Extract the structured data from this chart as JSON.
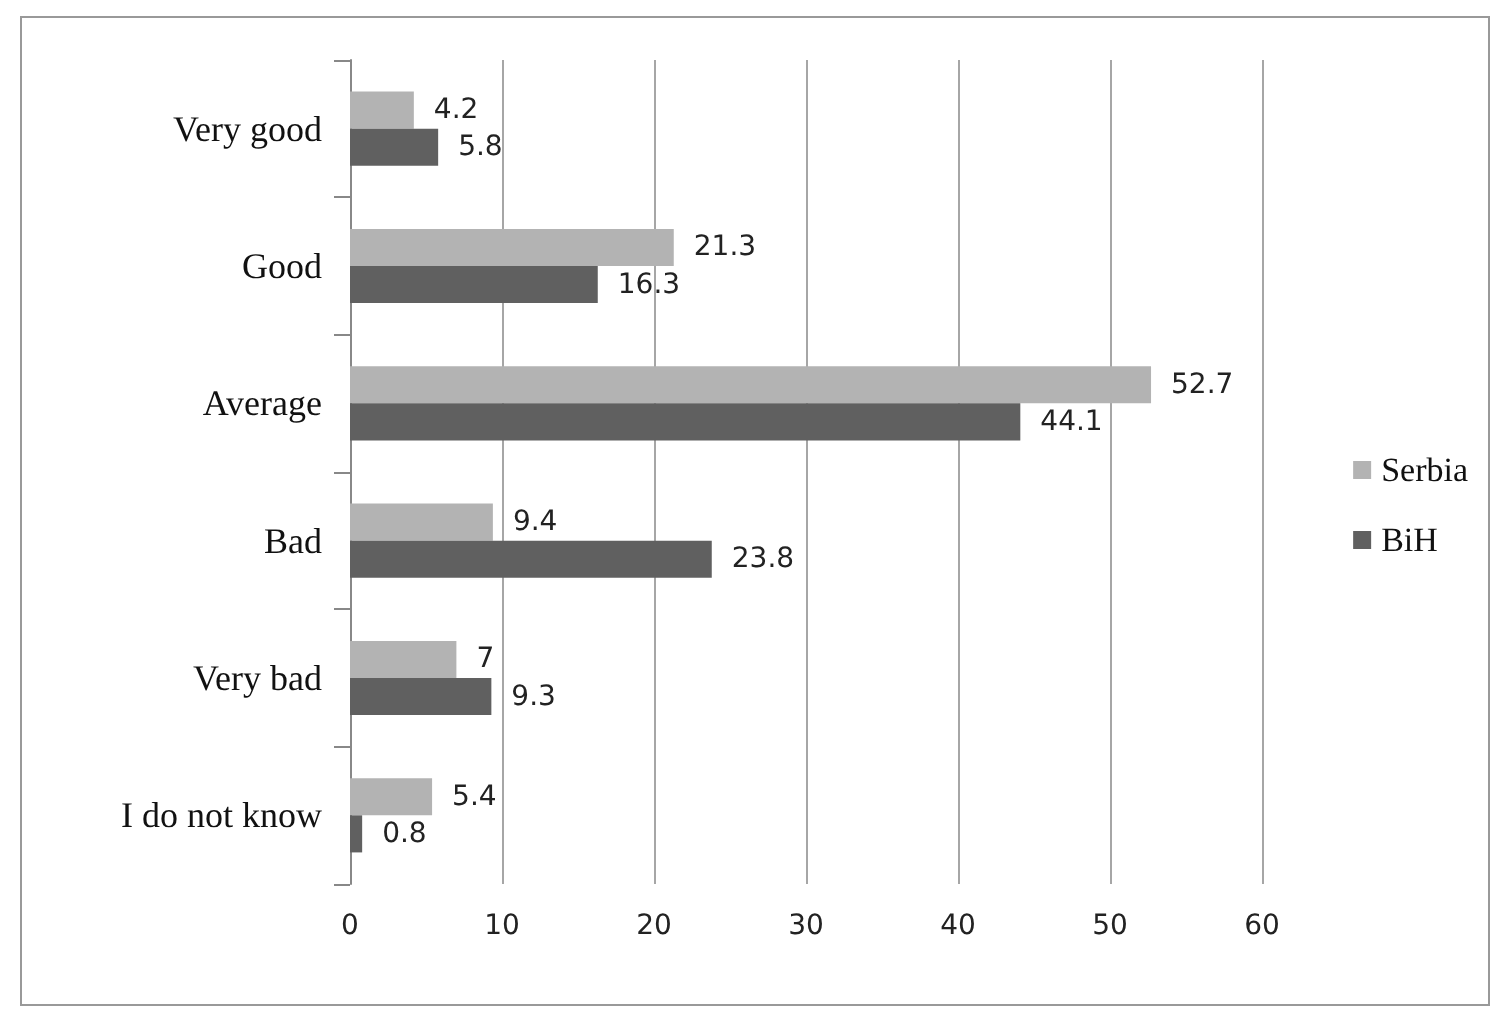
{
  "chart_data": {
    "type": "bar",
    "orientation": "horizontal",
    "categories": [
      "Very good",
      "Good",
      "Average",
      "Bad",
      "Very bad",
      "I do not know"
    ],
    "series": [
      {
        "name": "Serbia",
        "color": "#b3b3b3",
        "values": [
          4.2,
          21.3,
          52.7,
          9.4,
          7,
          5.4
        ]
      },
      {
        "name": "BiH",
        "color": "#606060",
        "values": [
          5.8,
          16.3,
          44.1,
          23.8,
          9.3,
          0.8
        ]
      }
    ],
    "xlim": [
      0,
      60
    ],
    "xticks": [
      0,
      10,
      20,
      30,
      40,
      50,
      60
    ],
    "grid": "x",
    "legend": "right",
    "data_labels": true
  }
}
